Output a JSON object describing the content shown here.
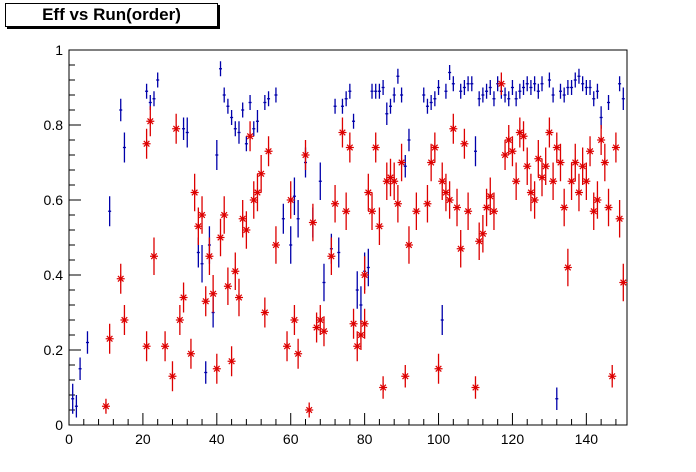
{
  "chart_data": {
    "type": "scatter",
    "title": "Eff vs Run(order)",
    "xlabel": "",
    "ylabel": "",
    "xlim": [
      0,
      151
    ],
    "ylim": [
      0,
      1
    ],
    "xticks": [
      0,
      20,
      40,
      60,
      80,
      100,
      120,
      140
    ],
    "yticks": [
      0,
      0.2,
      0.4,
      0.6,
      0.8,
      1
    ],
    "grid": false,
    "colors": {
      "series_blue": "#0000aa",
      "series_red": "#dd0000",
      "axis": "#000000"
    },
    "series": [
      {
        "marker": "cross-errorbar",
        "color": "#0000aa",
        "points": [
          [
            1,
            0.07,
            0.04
          ],
          [
            2,
            0.05,
            0.03
          ],
          [
            3,
            0.15,
            0.03
          ],
          [
            5,
            0.22,
            0.03
          ],
          [
            11,
            0.57,
            0.04
          ],
          [
            14,
            0.84,
            0.03
          ],
          [
            15,
            0.74,
            0.04
          ],
          [
            21,
            0.89,
            0.02
          ],
          [
            22,
            0.86,
            0.02
          ],
          [
            23,
            0.87,
            0.02
          ],
          [
            24,
            0.92,
            0.02
          ],
          [
            31,
            0.79,
            0.03
          ],
          [
            32,
            0.78,
            0.04
          ],
          [
            35,
            0.46,
            0.04
          ],
          [
            36,
            0.43,
            0.05
          ],
          [
            37,
            0.14,
            0.03
          ],
          [
            38,
            0.48,
            0.05
          ],
          [
            39,
            0.3,
            0.04
          ],
          [
            40,
            0.72,
            0.04
          ],
          [
            41,
            0.95,
            0.02
          ],
          [
            42,
            0.88,
            0.02
          ],
          [
            43,
            0.85,
            0.02
          ],
          [
            44,
            0.82,
            0.02
          ],
          [
            45,
            0.79,
            0.02
          ],
          [
            46,
            0.78,
            0.03
          ],
          [
            47,
            0.84,
            0.02
          ],
          [
            48,
            0.75,
            0.02
          ],
          [
            49,
            0.86,
            0.02
          ],
          [
            50,
            0.79,
            0.02
          ],
          [
            51,
            0.81,
            0.03
          ],
          [
            53,
            0.86,
            0.02
          ],
          [
            54,
            0.87,
            0.02
          ],
          [
            56,
            0.88,
            0.02
          ],
          [
            58,
            0.55,
            0.04
          ],
          [
            60,
            0.48,
            0.05
          ],
          [
            61,
            0.61,
            0.05
          ],
          [
            62,
            0.55,
            0.05
          ],
          [
            64,
            0.7,
            0.04
          ],
          [
            66,
            0.54,
            0.04
          ],
          [
            68,
            0.65,
            0.05
          ],
          [
            69,
            0.38,
            0.05
          ],
          [
            71,
            0.47,
            0.04
          ],
          [
            72,
            0.85,
            0.02
          ],
          [
            73,
            0.46,
            0.04
          ],
          [
            74,
            0.85,
            0.02
          ],
          [
            75,
            0.87,
            0.02
          ],
          [
            76,
            0.89,
            0.02
          ],
          [
            77,
            0.81,
            0.02
          ],
          [
            78,
            0.36,
            0.05
          ],
          [
            79,
            0.32,
            0.05
          ],
          [
            80,
            0.41,
            0.05
          ],
          [
            81,
            0.42,
            0.05
          ],
          [
            82,
            0.89,
            0.02
          ],
          [
            83,
            0.89,
            0.02
          ],
          [
            84,
            0.89,
            0.02
          ],
          [
            85,
            0.9,
            0.02
          ],
          [
            86,
            0.83,
            0.03
          ],
          [
            87,
            0.85,
            0.02
          ],
          [
            88,
            0.88,
            0.02
          ],
          [
            89,
            0.93,
            0.02
          ],
          [
            90,
            0.88,
            0.02
          ],
          [
            91,
            0.69,
            0.03
          ],
          [
            92,
            0.76,
            0.03
          ],
          [
            96,
            0.88,
            0.02
          ],
          [
            97,
            0.85,
            0.02
          ],
          [
            98,
            0.86,
            0.02
          ],
          [
            99,
            0.87,
            0.02
          ],
          [
            100,
            0.9,
            0.02
          ],
          [
            101,
            0.28,
            0.04
          ],
          [
            102,
            0.89,
            0.02
          ],
          [
            103,
            0.94,
            0.02
          ],
          [
            104,
            0.91,
            0.02
          ],
          [
            106,
            0.89,
            0.02
          ],
          [
            107,
            0.9,
            0.02
          ],
          [
            108,
            0.91,
            0.02
          ],
          [
            109,
            0.91,
            0.02
          ],
          [
            110,
            0.73,
            0.04
          ],
          [
            111,
            0.87,
            0.02
          ],
          [
            112,
            0.88,
            0.02
          ],
          [
            113,
            0.89,
            0.02
          ],
          [
            114,
            0.9,
            0.02
          ],
          [
            115,
            0.87,
            0.02
          ],
          [
            116,
            0.91,
            0.02
          ],
          [
            117,
            0.89,
            0.02
          ],
          [
            118,
            0.88,
            0.02
          ],
          [
            119,
            0.87,
            0.02
          ],
          [
            120,
            0.9,
            0.02
          ],
          [
            121,
            0.87,
            0.02
          ],
          [
            122,
            0.89,
            0.02
          ],
          [
            123,
            0.9,
            0.02
          ],
          [
            124,
            0.91,
            0.02
          ],
          [
            125,
            0.9,
            0.02
          ],
          [
            126,
            0.91,
            0.02
          ],
          [
            127,
            0.89,
            0.02
          ],
          [
            128,
            0.91,
            0.02
          ],
          [
            130,
            0.92,
            0.02
          ],
          [
            131,
            0.88,
            0.02
          ],
          [
            132,
            0.07,
            0.03
          ],
          [
            133,
            0.89,
            0.02
          ],
          [
            134,
            0.88,
            0.02
          ],
          [
            135,
            0.9,
            0.02
          ],
          [
            136,
            0.9,
            0.02
          ],
          [
            137,
            0.92,
            0.02
          ],
          [
            138,
            0.93,
            0.02
          ],
          [
            139,
            0.91,
            0.02
          ],
          [
            140,
            0.9,
            0.02
          ],
          [
            141,
            0.9,
            0.02
          ],
          [
            142,
            0.87,
            0.02
          ],
          [
            143,
            0.89,
            0.02
          ],
          [
            144,
            0.82,
            0.03
          ],
          [
            146,
            0.86,
            0.02
          ],
          [
            149,
            0.91,
            0.02
          ],
          [
            150,
            0.87,
            0.03
          ]
        ]
      },
      {
        "marker": "asterisk-errorbar",
        "color": "#dd0000",
        "points": [
          [
            10,
            0.05,
            0.02
          ],
          [
            11,
            0.23,
            0.04
          ],
          [
            14,
            0.39,
            0.04
          ],
          [
            15,
            0.28,
            0.04
          ],
          [
            21,
            0.21,
            0.04
          ],
          [
            21,
            0.75,
            0.04
          ],
          [
            22,
            0.81,
            0.04
          ],
          [
            23,
            0.45,
            0.05
          ],
          [
            26,
            0.21,
            0.04
          ],
          [
            28,
            0.13,
            0.04
          ],
          [
            29,
            0.79,
            0.04
          ],
          [
            30,
            0.28,
            0.04
          ],
          [
            31,
            0.34,
            0.04
          ],
          [
            33,
            0.19,
            0.04
          ],
          [
            34,
            0.62,
            0.05
          ],
          [
            35,
            0.53,
            0.05
          ],
          [
            36,
            0.56,
            0.05
          ],
          [
            37,
            0.33,
            0.04
          ],
          [
            38,
            0.45,
            0.05
          ],
          [
            39,
            0.35,
            0.05
          ],
          [
            40,
            0.15,
            0.04
          ],
          [
            41,
            0.5,
            0.05
          ],
          [
            42,
            0.56,
            0.05
          ],
          [
            43,
            0.37,
            0.05
          ],
          [
            44,
            0.17,
            0.04
          ],
          [
            45,
            0.41,
            0.05
          ],
          [
            46,
            0.34,
            0.05
          ],
          [
            47,
            0.55,
            0.05
          ],
          [
            48,
            0.52,
            0.05
          ],
          [
            49,
            0.77,
            0.04
          ],
          [
            50,
            0.6,
            0.05
          ],
          [
            51,
            0.62,
            0.05
          ],
          [
            52,
            0.67,
            0.05
          ],
          [
            53,
            0.3,
            0.04
          ],
          [
            54,
            0.73,
            0.04
          ],
          [
            56,
            0.48,
            0.05
          ],
          [
            59,
            0.21,
            0.04
          ],
          [
            60,
            0.6,
            0.05
          ],
          [
            61,
            0.28,
            0.04
          ],
          [
            62,
            0.19,
            0.04
          ],
          [
            64,
            0.72,
            0.04
          ],
          [
            65,
            0.04,
            0.02
          ],
          [
            66,
            0.54,
            0.05
          ],
          [
            67,
            0.26,
            0.04
          ],
          [
            68,
            0.28,
            0.04
          ],
          [
            69,
            0.25,
            0.04
          ],
          [
            71,
            0.45,
            0.05
          ],
          [
            72,
            0.59,
            0.05
          ],
          [
            74,
            0.78,
            0.04
          ],
          [
            75,
            0.57,
            0.05
          ],
          [
            76,
            0.74,
            0.04
          ],
          [
            77,
            0.27,
            0.04
          ],
          [
            78,
            0.21,
            0.04
          ],
          [
            79,
            0.24,
            0.04
          ],
          [
            80,
            0.27,
            0.04
          ],
          [
            80,
            0.4,
            0.05
          ],
          [
            81,
            0.62,
            0.05
          ],
          [
            82,
            0.57,
            0.05
          ],
          [
            83,
            0.74,
            0.04
          ],
          [
            84,
            0.53,
            0.05
          ],
          [
            85,
            0.1,
            0.03
          ],
          [
            86,
            0.65,
            0.05
          ],
          [
            87,
            0.66,
            0.05
          ],
          [
            88,
            0.65,
            0.05
          ],
          [
            89,
            0.59,
            0.05
          ],
          [
            90,
            0.7,
            0.05
          ],
          [
            91,
            0.13,
            0.03
          ],
          [
            92,
            0.48,
            0.05
          ],
          [
            94,
            0.57,
            0.05
          ],
          [
            97,
            0.59,
            0.05
          ],
          [
            98,
            0.7,
            0.05
          ],
          [
            99,
            0.74,
            0.04
          ],
          [
            100,
            0.15,
            0.04
          ],
          [
            101,
            0.65,
            0.05
          ],
          [
            102,
            0.62,
            0.05
          ],
          [
            103,
            0.6,
            0.05
          ],
          [
            104,
            0.79,
            0.04
          ],
          [
            105,
            0.58,
            0.05
          ],
          [
            106,
            0.47,
            0.05
          ],
          [
            107,
            0.75,
            0.04
          ],
          [
            108,
            0.57,
            0.05
          ],
          [
            110,
            0.1,
            0.03
          ],
          [
            111,
            0.49,
            0.05
          ],
          [
            112,
            0.51,
            0.05
          ],
          [
            113,
            0.58,
            0.05
          ],
          [
            114,
            0.61,
            0.05
          ],
          [
            115,
            0.57,
            0.05
          ],
          [
            117,
            0.91,
            0.03
          ],
          [
            118,
            0.72,
            0.04
          ],
          [
            119,
            0.76,
            0.04
          ],
          [
            120,
            0.73,
            0.04
          ],
          [
            121,
            0.65,
            0.05
          ],
          [
            122,
            0.78,
            0.04
          ],
          [
            123,
            0.77,
            0.04
          ],
          [
            124,
            0.69,
            0.05
          ],
          [
            125,
            0.62,
            0.05
          ],
          [
            126,
            0.6,
            0.05
          ],
          [
            127,
            0.71,
            0.05
          ],
          [
            128,
            0.66,
            0.05
          ],
          [
            129,
            0.69,
            0.05
          ],
          [
            130,
            0.78,
            0.04
          ],
          [
            131,
            0.65,
            0.05
          ],
          [
            132,
            0.74,
            0.04
          ],
          [
            133,
            0.7,
            0.05
          ],
          [
            134,
            0.58,
            0.05
          ],
          [
            135,
            0.42,
            0.05
          ],
          [
            136,
            0.65,
            0.05
          ],
          [
            137,
            0.7,
            0.05
          ],
          [
            138,
            0.62,
            0.05
          ],
          [
            139,
            0.69,
            0.05
          ],
          [
            140,
            0.65,
            0.05
          ],
          [
            141,
            0.73,
            0.04
          ],
          [
            142,
            0.57,
            0.05
          ],
          [
            143,
            0.6,
            0.05
          ],
          [
            144,
            0.76,
            0.04
          ],
          [
            145,
            0.7,
            0.05
          ],
          [
            146,
            0.58,
            0.05
          ],
          [
            147,
            0.13,
            0.03
          ],
          [
            148,
            0.74,
            0.04
          ],
          [
            149,
            0.55,
            0.05
          ],
          [
            150,
            0.38,
            0.05
          ]
        ]
      }
    ]
  }
}
